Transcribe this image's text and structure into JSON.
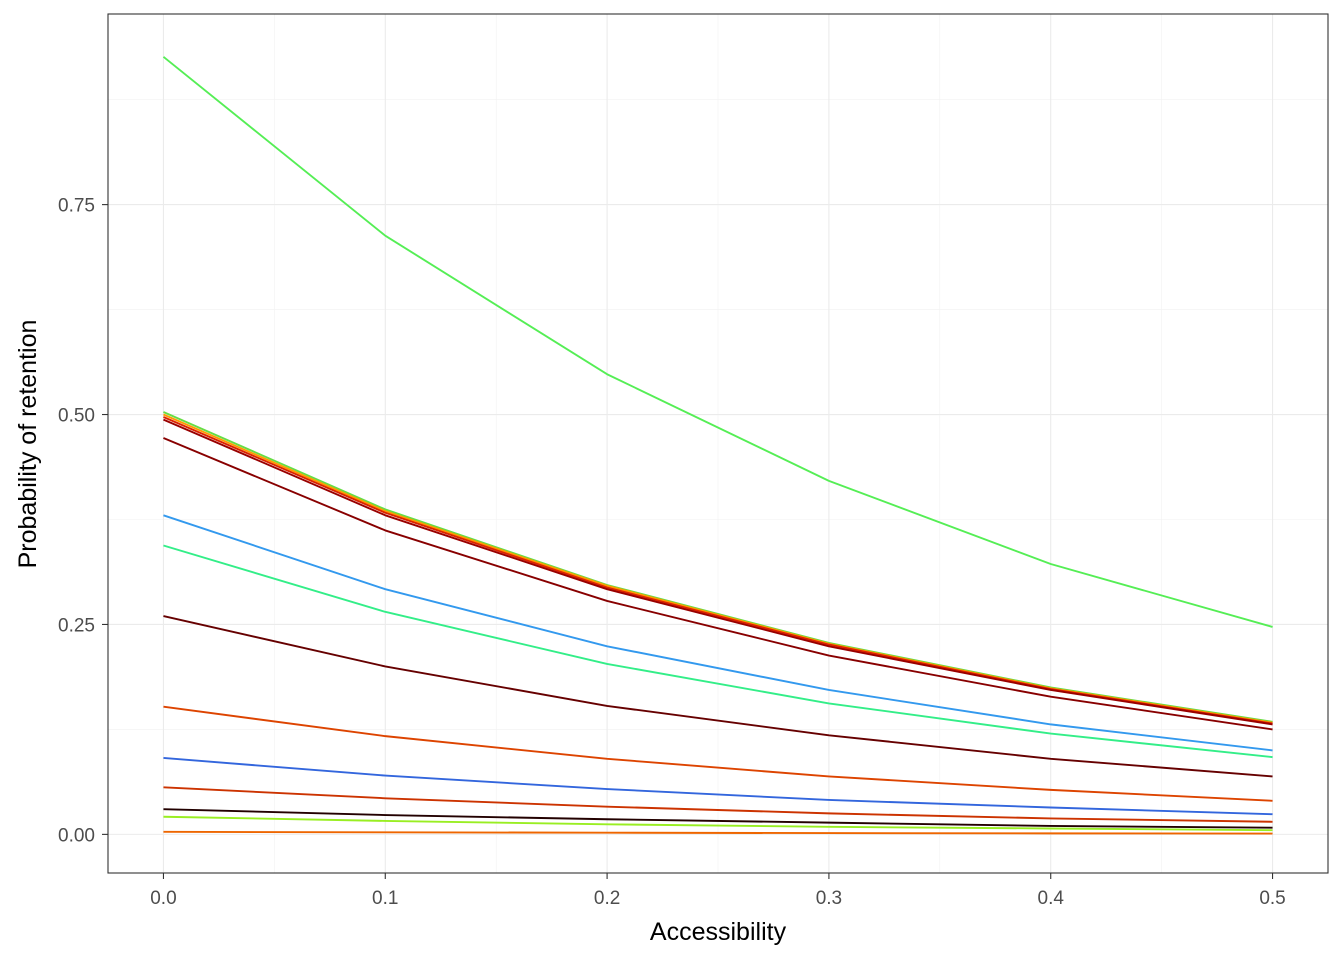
{
  "chart_data": {
    "type": "line",
    "xlabel": "Accessibility",
    "ylabel": "Probability of retention",
    "xlim": [
      -0.025,
      0.525
    ],
    "ylim": [
      -0.046,
      0.977
    ],
    "x_ticks": [
      0.0,
      0.1,
      0.2,
      0.3,
      0.4,
      0.5
    ],
    "x_tick_labels": [
      "0.0",
      "0.1",
      "0.2",
      "0.3",
      "0.4",
      "0.5"
    ],
    "y_ticks": [
      0.0,
      0.25,
      0.5,
      0.75
    ],
    "y_tick_labels": [
      "0.00",
      "0.25",
      "0.50",
      "0.75"
    ],
    "grid": true,
    "legend": "none",
    "x": [
      0.0,
      0.1,
      0.2,
      0.3,
      0.4,
      0.5
    ],
    "series": [
      {
        "color": "#55ee55",
        "values": [
          0.926,
          0.713,
          0.548,
          0.421,
          0.322,
          0.247
        ]
      },
      {
        "color": "#66dd44",
        "values": [
          0.503,
          0.387,
          0.297,
          0.228,
          0.175,
          0.134
        ]
      },
      {
        "color": "#ff9900",
        "values": [
          0.5,
          0.385,
          0.296,
          0.227,
          0.174,
          0.133
        ]
      },
      {
        "color": "#dd2200",
        "values": [
          0.497,
          0.383,
          0.294,
          0.226,
          0.173,
          0.132
        ]
      },
      {
        "color": "#990000",
        "values": [
          0.494,
          0.38,
          0.292,
          0.224,
          0.172,
          0.131
        ]
      },
      {
        "color": "#880000",
        "values": [
          0.472,
          0.362,
          0.278,
          0.213,
          0.164,
          0.125
        ]
      },
      {
        "color": "#3399ee",
        "values": [
          0.38,
          0.292,
          0.224,
          0.172,
          0.131,
          0.1
        ]
      },
      {
        "color": "#33ee88",
        "values": [
          0.344,
          0.265,
          0.203,
          0.156,
          0.12,
          0.092
        ]
      },
      {
        "color": "#660000",
        "values": [
          0.26,
          0.2,
          0.153,
          0.118,
          0.09,
          0.069
        ]
      },
      {
        "color": "#dd4400",
        "values": [
          0.152,
          0.117,
          0.09,
          0.069,
          0.053,
          0.04
        ]
      },
      {
        "color": "#3366dd",
        "values": [
          0.091,
          0.07,
          0.054,
          0.041,
          0.032,
          0.024
        ]
      },
      {
        "color": "#cc3300",
        "values": [
          0.056,
          0.043,
          0.033,
          0.025,
          0.019,
          0.015
        ]
      },
      {
        "color": "#220000",
        "values": [
          0.03,
          0.023,
          0.018,
          0.014,
          0.01,
          0.008
        ]
      },
      {
        "color": "#99ee22",
        "values": [
          0.021,
          0.016,
          0.012,
          0.009,
          0.007,
          0.005
        ]
      },
      {
        "color": "#ee6600",
        "values": [
          0.003,
          0.0025,
          0.002,
          0.0015,
          0.0012,
          0.001
        ]
      }
    ]
  }
}
